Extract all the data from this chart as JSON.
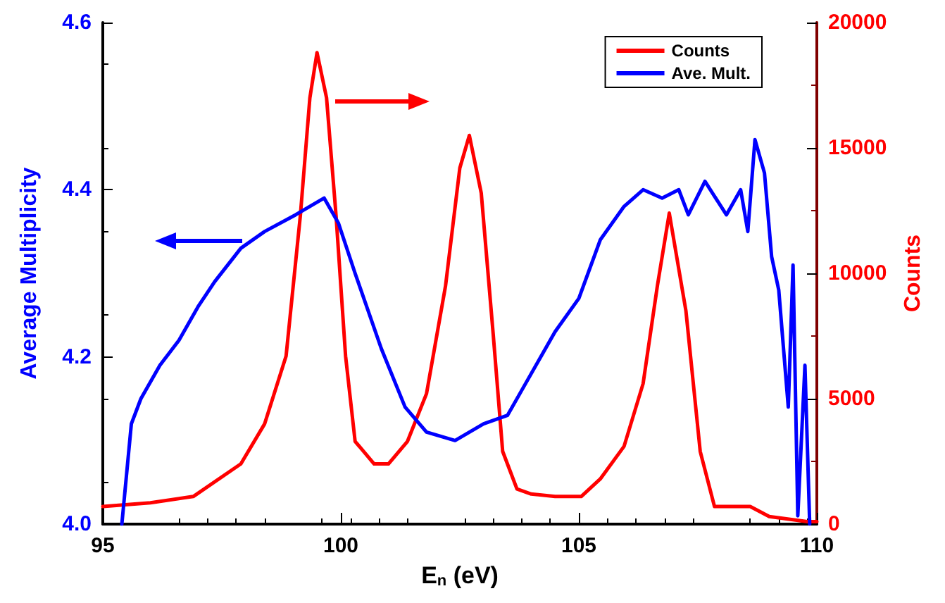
{
  "chart_data": {
    "type": "line",
    "xlabel": "E$_{n}$ (eV)",
    "ylabel": "Average Multiplicity",
    "y2label": "Counts",
    "xlim": [
      95,
      110
    ],
    "xticks": [
      95,
      100,
      105,
      110
    ],
    "ylim": [
      4.0,
      4.6
    ],
    "yticks": [
      {
        "value": 4.0,
        "label": "4.0"
      },
      4.2,
      4.4,
      4.6
    ],
    "y2lim": [
      0,
      20000
    ],
    "y2ticks": [
      0,
      5000,
      10000,
      15000,
      20000
    ],
    "legend": "top right",
    "grid": false,
    "marker": "none",
    "line_style": "solid",
    "series": [
      {
        "name": "Counts",
        "color": "#ff0000",
        "axis": "y2",
        "x": [
          95,
          96,
          96.9,
          97.9,
          98.4,
          98.85,
          99.15,
          99.35,
          99.5,
          99.7,
          99.9,
          100.1,
          100.3,
          100.7,
          101.0,
          101.4,
          101.8,
          102.2,
          102.5,
          102.7,
          102.95,
          103.2,
          103.4,
          103.7,
          104.0,
          104.5,
          105.05,
          105.45,
          105.95,
          106.35,
          106.65,
          106.9,
          107.25,
          107.55,
          107.85,
          108.6,
          109.0,
          109.8,
          110
        ],
        "values": [
          700,
          850,
          1100,
          2400,
          4000,
          6700,
          12300,
          17000,
          18800,
          17000,
          12300,
          6700,
          3300,
          2400,
          2400,
          3300,
          5200,
          9500,
          14200,
          15500,
          13200,
          7600,
          2900,
          1400,
          1200,
          1100,
          1100,
          1800,
          3100,
          5600,
          9500,
          12400,
          8500,
          2900,
          700,
          700,
          300,
          100,
          100
        ]
      },
      {
        "name": "Ave. Mult.",
        "color": "#0000ff",
        "axis": "y",
        "x": [
          95.4,
          95.6,
          95.8,
          96.2,
          96.6,
          97.0,
          97.35,
          97.9,
          98.4,
          99.05,
          99.65,
          99.95,
          100.3,
          100.85,
          101.35,
          101.8,
          102.4,
          103.0,
          103.5,
          103.8,
          104.5,
          105.0,
          105.45,
          105.95,
          106.35,
          106.75,
          107.1,
          107.3,
          107.65,
          108.1,
          108.4,
          108.55,
          108.7,
          108.9,
          109.05,
          109.2,
          109.4,
          109.5,
          109.6,
          109.75,
          109.85
        ],
        "values": [
          4.0,
          4.12,
          4.15,
          4.19,
          4.22,
          4.26,
          4.29,
          4.33,
          4.35,
          4.37,
          4.39,
          4.36,
          4.3,
          4.21,
          4.14,
          4.11,
          4.1,
          4.12,
          4.13,
          4.16,
          4.23,
          4.27,
          4.34,
          4.38,
          4.4,
          4.39,
          4.4,
          4.37,
          4.41,
          4.37,
          4.4,
          4.35,
          4.46,
          4.42,
          4.32,
          4.28,
          4.14,
          4.31,
          4.01,
          4.19,
          4.0
        ]
      }
    ]
  }
}
